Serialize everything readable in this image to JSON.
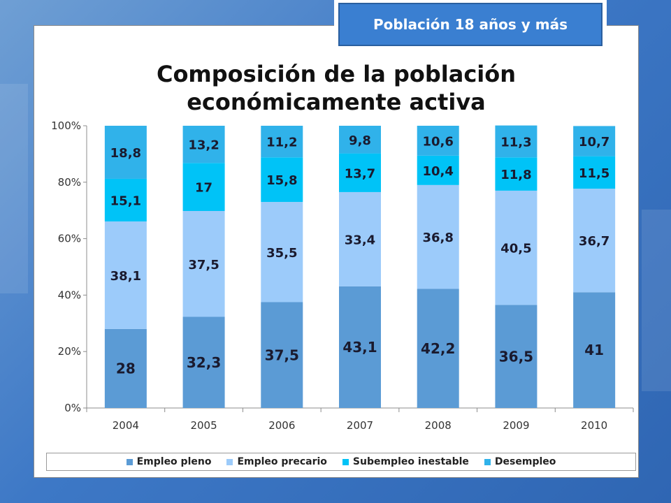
{
  "badge": {
    "label": "Población 18 años y más"
  },
  "chart_data": {
    "type": "bar",
    "stacked": true,
    "percent": true,
    "title": "Composición de la población económicamente activa",
    "title_lines": [
      "Composición de la población",
      "económicamente activa"
    ],
    "categories": [
      "2004",
      "2005",
      "2006",
      "2007",
      "2008",
      "2009",
      "2010"
    ],
    "series": [
      {
        "name": "Empleo pleno",
        "color": "#5b9bd5",
        "values": [
          28,
          32.3,
          37.5,
          43.1,
          42.2,
          36.5,
          41
        ],
        "labels": [
          "28",
          "32,3",
          "37,5",
          "43,1",
          "42,2",
          "36,5",
          "41"
        ]
      },
      {
        "name": "Empleo precario",
        "color": "#9ccbfa",
        "values": [
          38.1,
          37.5,
          35.5,
          33.4,
          36.8,
          40.5,
          36.7
        ],
        "labels": [
          "38,1",
          "37,5",
          "35,5",
          "33,4",
          "36,8",
          "40,5",
          "36,7"
        ]
      },
      {
        "name": "Subempleo inestable",
        "color": "#00c3f7",
        "values": [
          15.1,
          17,
          15.8,
          13.7,
          10.4,
          11.8,
          11.5
        ],
        "labels": [
          "15,1",
          "17",
          "15,8",
          "13,7",
          "10,4",
          "11,8",
          "11,5"
        ]
      },
      {
        "name": "Desempleo",
        "color": "#30b2ea",
        "values": [
          18.8,
          13.2,
          11.2,
          9.8,
          10.6,
          11.3,
          10.7
        ],
        "labels": [
          "18,8",
          "13,2",
          "11,2",
          "9,8",
          "10,6",
          "11,3",
          "10,7"
        ]
      }
    ],
    "yticks": [
      "0%",
      "20%",
      "40%",
      "60%",
      "80%",
      "100%"
    ],
    "ylim": [
      0,
      100
    ],
    "grid": false,
    "legend_position": "bottom"
  }
}
